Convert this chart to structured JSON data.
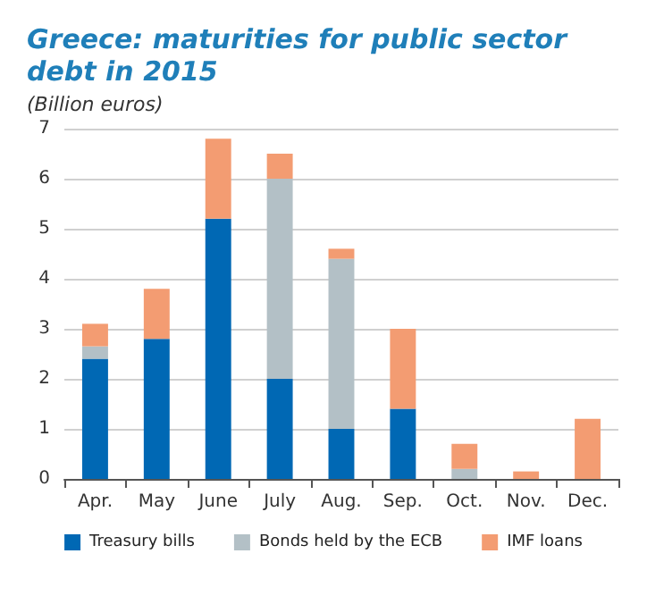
{
  "chart_data": {
    "type": "bar",
    "title": "Greece: maturities for public sector\ndebt in 2015",
    "subtitle": "(Billion euros)",
    "categories": [
      "Apr.",
      "May",
      "June",
      "July",
      "Aug.",
      "Sep.",
      "Oct.",
      "Nov.",
      "Dec."
    ],
    "series": [
      {
        "name": "Treasury bills",
        "color": "#0068b4",
        "values": [
          2.4,
          2.8,
          5.2,
          2.0,
          1.0,
          1.4,
          0,
          0,
          0
        ]
      },
      {
        "name": "Bonds held by the ECB",
        "color": "#b3c0c6",
        "values": [
          0.25,
          0,
          0,
          4.0,
          3.4,
          0,
          0.2,
          0,
          0
        ]
      },
      {
        "name": "IMF loans",
        "color": "#f39c72",
        "values": [
          0.45,
          1.0,
          1.6,
          0.5,
          0.2,
          1.6,
          0.5,
          0.15,
          1.2
        ]
      }
    ],
    "stacked": true,
    "ylim": [
      0,
      7
    ],
    "yticks": [
      0,
      1,
      2,
      3,
      4,
      5,
      6,
      7
    ],
    "grid": "y",
    "legend": "bottom"
  }
}
